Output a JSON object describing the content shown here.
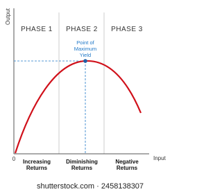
{
  "axes": {
    "y_label": "Output",
    "x_label": "Input",
    "origin": "0"
  },
  "phases": [
    {
      "title": "PHASE 1",
      "label": [
        "Increasing",
        "Returns"
      ]
    },
    {
      "title": "PHASE 2",
      "label": [
        "Diminishing",
        "Returns"
      ]
    },
    {
      "title": "PHASE 3",
      "label": [
        "Negative",
        "Returns"
      ]
    }
  ],
  "annotation": [
    "Point of",
    "Maximum",
    "Yield"
  ],
  "watermark": "shutterstock.com · 2458138307"
}
